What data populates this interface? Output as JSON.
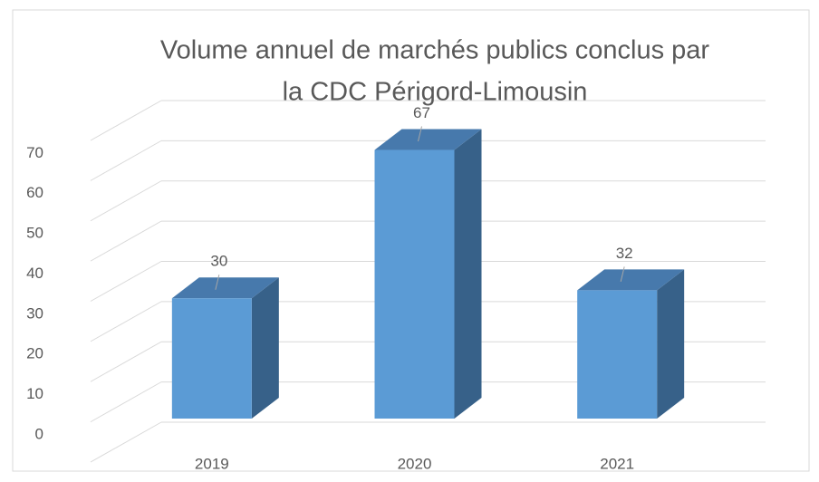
{
  "chart_data": {
    "type": "bar3d",
    "title": [
      "Volume annuel de marchés publics conclus par",
      "la CDC Périgord-Limousin"
    ],
    "categories": [
      "2019",
      "2020",
      "2021"
    ],
    "values": [
      30,
      67,
      32
    ],
    "color": "#5b9bd5",
    "ylim": [
      0,
      80
    ],
    "yticks": [
      0,
      10,
      20,
      30,
      40,
      50,
      60,
      70
    ],
    "grid": true
  }
}
